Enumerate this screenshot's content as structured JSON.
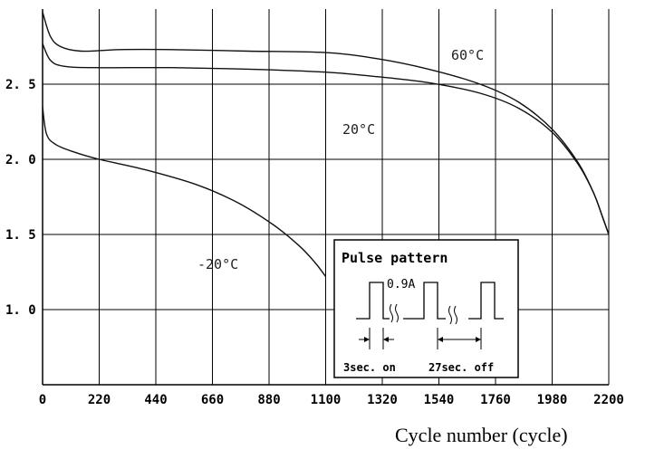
{
  "chart_data": {
    "type": "line",
    "xlabel": "Cycle number (cycle)",
    "ylabel": "",
    "xlim": [
      0,
      2200
    ],
    "ylim": [
      0.5,
      3.0
    ],
    "x_ticks": [
      "0",
      "220",
      "440",
      "660",
      "880",
      "1100",
      "1320",
      "1540",
      "1760",
      "1980",
      "2200"
    ],
    "y_ticks": [
      {
        "value": 2.5,
        "label": "2. 5"
      },
      {
        "value": 2.0,
        "label": "2. 0"
      },
      {
        "value": 1.5,
        "label": "1. 5"
      },
      {
        "value": 1.0,
        "label": "1. 0"
      }
    ],
    "grid": true,
    "series": [
      {
        "name": "60°C",
        "x": [
          0,
          30,
          70,
          150,
          300,
          500,
          800,
          1100,
          1300,
          1500,
          1700,
          1850,
          1980,
          2080,
          2140,
          2175,
          2200
        ],
        "y": [
          2.98,
          2.82,
          2.75,
          2.72,
          2.73,
          2.73,
          2.72,
          2.71,
          2.67,
          2.6,
          2.5,
          2.38,
          2.2,
          1.98,
          1.78,
          1.62,
          1.5
        ]
      },
      {
        "name": "20°C",
        "x": [
          0,
          30,
          80,
          200,
          500,
          800,
          1100,
          1300,
          1500,
          1700,
          1850,
          1980,
          2080,
          2140,
          2175,
          2200
        ],
        "y": [
          2.77,
          2.66,
          2.62,
          2.61,
          2.61,
          2.6,
          2.58,
          2.55,
          2.51,
          2.44,
          2.34,
          2.18,
          1.97,
          1.78,
          1.62,
          1.5
        ]
      },
      {
        "name": "-20°C",
        "x": [
          0,
          15,
          50,
          120,
          220,
          400,
          600,
          760,
          900,
          1000,
          1060,
          1100
        ],
        "y": [
          2.35,
          2.17,
          2.1,
          2.05,
          2.0,
          1.93,
          1.83,
          1.71,
          1.56,
          1.42,
          1.31,
          1.22
        ]
      }
    ],
    "annotations": {
      "label_60": "60°C",
      "label_20": "20°C",
      "label_m20": "-20°C"
    }
  },
  "inset": {
    "title": "Pulse pattern",
    "amplitude": "0.9A",
    "on_label": "3sec. on",
    "off_label": "27sec. off"
  }
}
